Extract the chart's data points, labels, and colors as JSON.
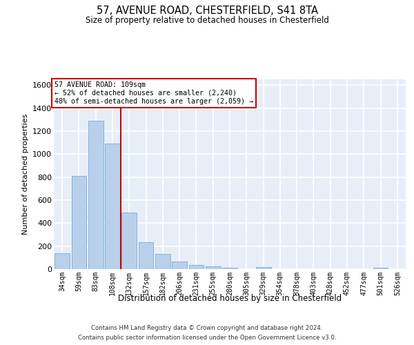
{
  "title1": "57, AVENUE ROAD, CHESTERFIELD, S41 8TA",
  "title2": "Size of property relative to detached houses in Chesterfield",
  "xlabel": "Distribution of detached houses by size in Chesterfield",
  "ylabel": "Number of detached properties",
  "categories": [
    "34sqm",
    "59sqm",
    "83sqm",
    "108sqm",
    "132sqm",
    "157sqm",
    "182sqm",
    "206sqm",
    "231sqm",
    "255sqm",
    "280sqm",
    "305sqm",
    "329sqm",
    "354sqm",
    "378sqm",
    "403sqm",
    "428sqm",
    "452sqm",
    "477sqm",
    "501sqm",
    "526sqm"
  ],
  "values": [
    137,
    813,
    1293,
    1093,
    493,
    233,
    130,
    65,
    38,
    27,
    15,
    0,
    18,
    0,
    0,
    0,
    0,
    0,
    0,
    15,
    0
  ],
  "bar_color": "#b8d0ea",
  "bar_edge_color": "#7aaed4",
  "background_color": "#e8eef8",
  "grid_color": "#ffffff",
  "vline_x": 3.5,
  "vline_color": "#cc0000",
  "annotation_line1": "57 AVENUE ROAD: 109sqm",
  "annotation_line2": "← 52% of detached houses are smaller (2,240)",
  "annotation_line3": "48% of semi-detached houses are larger (2,059) →",
  "annotation_box_color": "#ffffff",
  "annotation_border_color": "#cc0000",
  "footer1": "Contains HM Land Registry data © Crown copyright and database right 2024.",
  "footer2": "Contains public sector information licensed under the Open Government Licence v3.0.",
  "ylim": [
    0,
    1650
  ],
  "yticks": [
    0,
    200,
    400,
    600,
    800,
    1000,
    1200,
    1400,
    1600
  ]
}
